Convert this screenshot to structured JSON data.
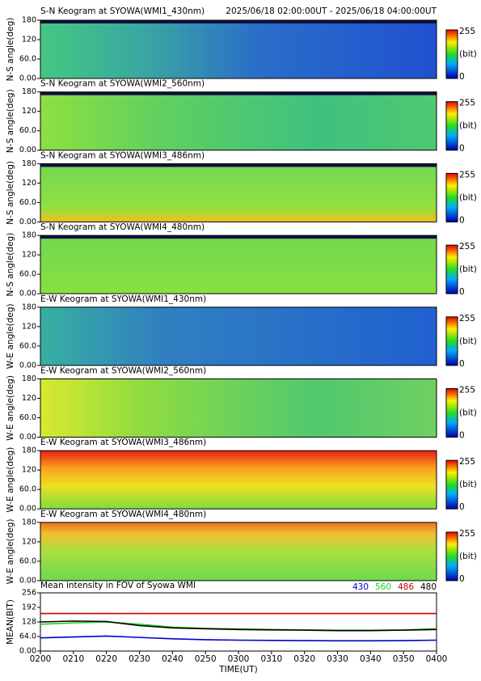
{
  "header": {
    "period": "2025/06/18 02:00:00UT - 2025/06/18 04:00:00UT"
  },
  "keogram_yticks": [
    {
      "value": 0,
      "label": "0.00"
    },
    {
      "value": 60,
      "label": "60.0"
    },
    {
      "value": 120,
      "label": "120"
    },
    {
      "value": 180,
      "label": "180"
    }
  ],
  "keogram_ylim": [
    0,
    180
  ],
  "colorbar": {
    "max": 255,
    "min": 0,
    "unit": "(bit)"
  },
  "keograms": [
    {
      "title": "S-N Keogram at SYOWA(WMI1_430nm)",
      "ylabel": "N-S angle(deg)"
    },
    {
      "title": "S-N Keogram at SYOWA(WMI2_560nm)",
      "ylabel": "N-S angle(deg)"
    },
    {
      "title": "S-N Keogram at SYOWA(WMI3_486nm)",
      "ylabel": "N-S angle(deg)"
    },
    {
      "title": "S-N Keogram at SYOWA(WMI4_480nm)",
      "ylabel": "N-S angle(deg)"
    },
    {
      "title": "E-W Keogram at SYOWA(WMI1_430nm)",
      "ylabel": "W-E angle(deg)"
    },
    {
      "title": "E-W Keogram at SYOWA(WMI2_560nm)",
      "ylabel": "W-E angle(deg)"
    },
    {
      "title": "E-W Keogram at SYOWA(WMI3_486nm)",
      "ylabel": "W-E angle(deg)"
    },
    {
      "title": "E-W Keogram at SYOWA(WMI4_480nm)",
      "ylabel": "W-E angle(deg)"
    }
  ],
  "chart_data": {
    "type": "line",
    "title": "Mean intensity in FOV of Syowa WMI",
    "x_label": "TIME(UT)",
    "y_label": "MEAN(BIT)",
    "categories": [
      "0200",
      "0210",
      "0220",
      "0230",
      "0240",
      "0250",
      "0300",
      "0310",
      "0320",
      "0330",
      "0340",
      "0350",
      "0400"
    ],
    "series": [
      {
        "name": "430",
        "color": "#0000cc",
        "values": [
          58,
          62,
          66,
          60,
          54,
          50,
          48,
          47,
          46,
          45,
          45,
          46,
          48
        ]
      },
      {
        "name": "560",
        "color": "#22cc22",
        "values": [
          118,
          124,
          128,
          118,
          105,
          100,
          97,
          95,
          93,
          92,
          92,
          93,
          98
        ]
      },
      {
        "name": "486",
        "color": "#cc0000",
        "values": [
          165,
          165,
          165,
          165,
          165,
          165,
          165,
          165,
          165,
          165,
          165,
          165,
          165
        ]
      },
      {
        "name": "480",
        "color": "#000000",
        "values": [
          128,
          132,
          130,
          112,
          102,
          98,
          95,
          93,
          92,
          90,
          90,
          92,
          95
        ]
      }
    ],
    "ylim": [
      0,
      256
    ],
    "yticks": [
      {
        "value": 0,
        "label": "0.00"
      },
      {
        "value": 64,
        "label": "64.0"
      },
      128,
      192,
      256
    ],
    "legend": "top-right"
  }
}
